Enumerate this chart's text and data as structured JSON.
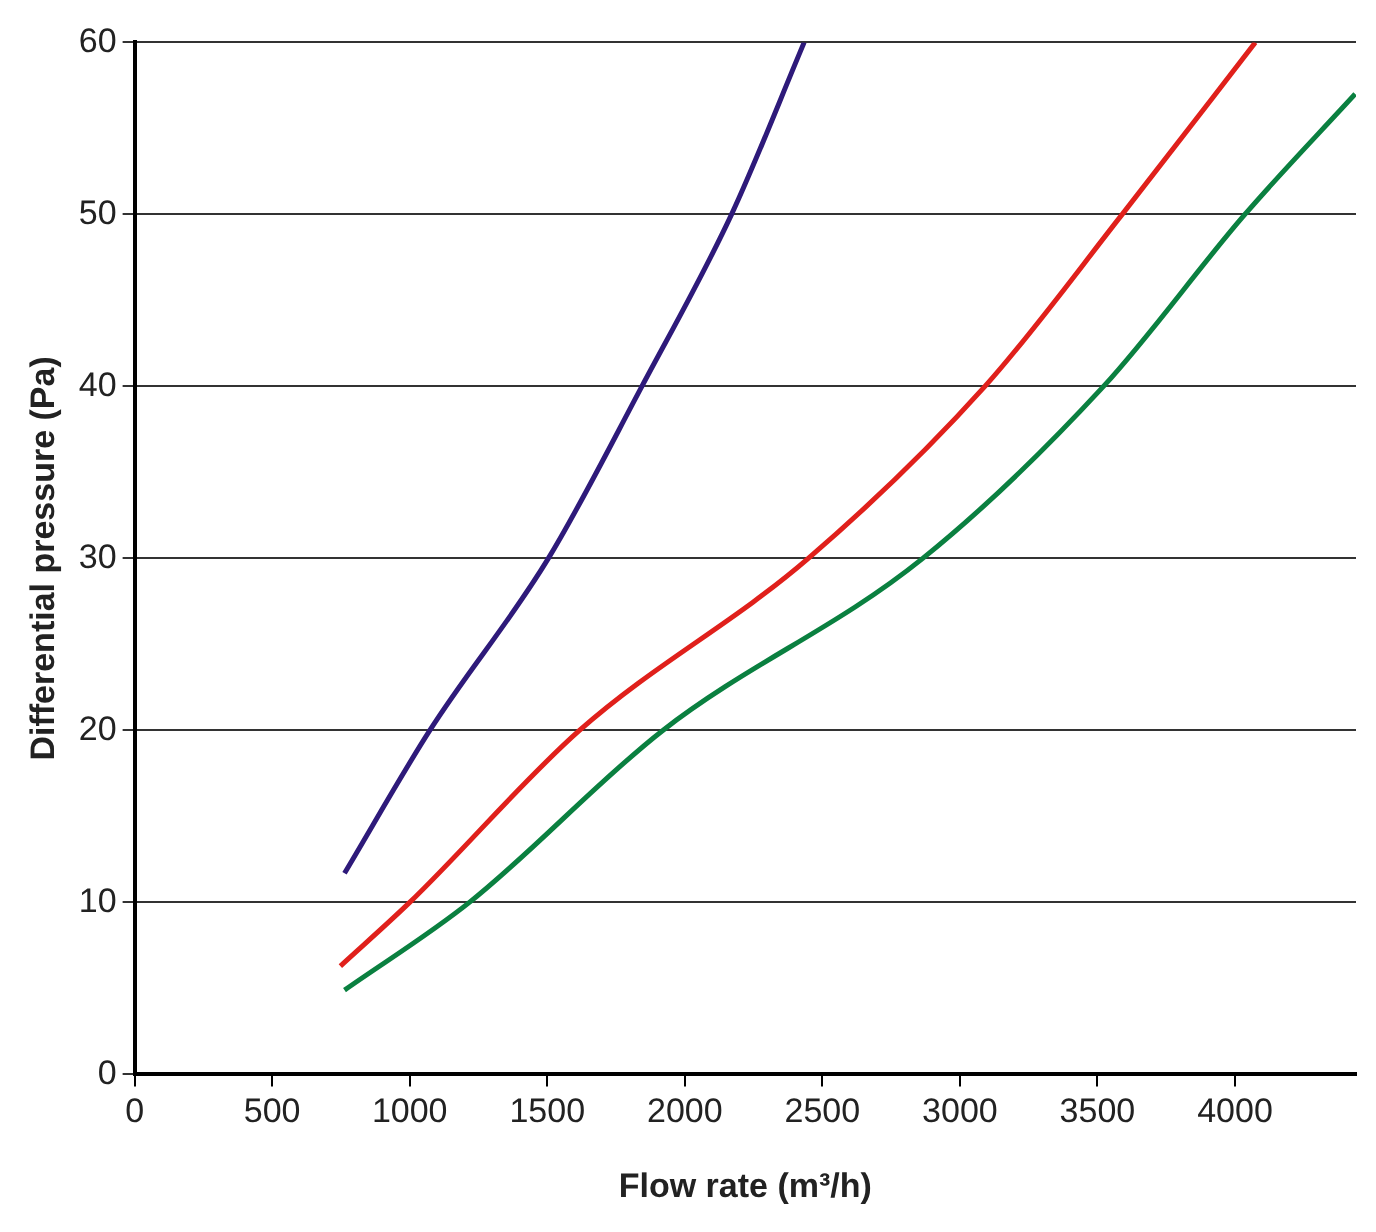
{
  "chart_data": {
    "type": "line",
    "xlabel": "Flow rate (m³/h)",
    "ylabel": "Differential pressure (Pa)",
    "xlim": [
      0,
      4440
    ],
    "xticks": [
      0,
      500,
      1000,
      1500,
      2000,
      2500,
      3000,
      3500,
      4000
    ],
    "ylim": [
      0,
      60
    ],
    "yticks": [
      0,
      10,
      20,
      30,
      40,
      50,
      60
    ],
    "grid": "y",
    "marker": "none",
    "line_style": "solid",
    "legend": false,
    "series": [
      {
        "color": "#2e1a7a",
        "x": [
          763,
          1073,
          1504,
          1844,
          2170,
          2434
        ],
        "values": [
          11.7,
          20,
          30,
          40,
          50,
          60
        ]
      },
      {
        "color": "#e0201b",
        "x": [
          748,
          1000,
          1617,
          2449,
          3091,
          3590,
          4074
        ],
        "values": [
          6.3,
          10,
          20,
          30,
          40,
          50,
          60
        ]
      },
      {
        "color": "#0a8040",
        "x": [
          763,
          1217,
          1920,
          2865,
          3522,
          4036,
          4437
        ],
        "values": [
          4.9,
          10,
          20,
          30,
          40,
          50,
          57
        ]
      }
    ]
  }
}
